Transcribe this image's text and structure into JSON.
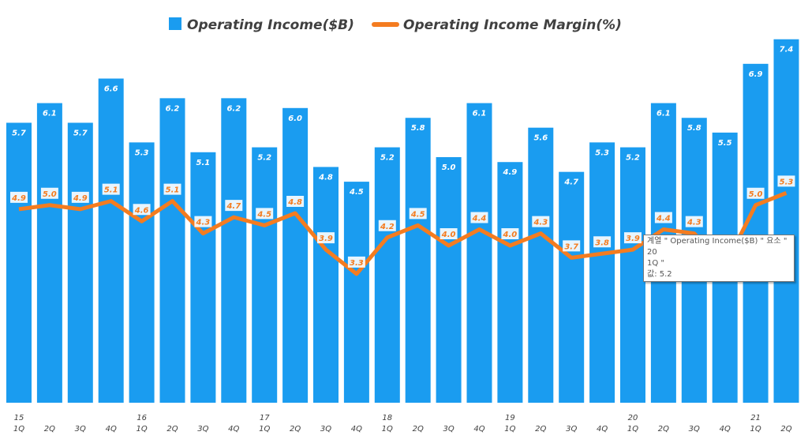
{
  "chart_data": {
    "type": "bar+line",
    "title": "",
    "legend": [
      "Operating Income($B)",
      "Operating Income Margin(%)"
    ],
    "legend_position": "top",
    "categories": [
      "1Q",
      "2Q",
      "3Q",
      "4Q",
      "1Q",
      "2Q",
      "3Q",
      "4Q",
      "1Q",
      "2Q",
      "3Q",
      "4Q",
      "1Q",
      "2Q",
      "3Q",
      "4Q",
      "1Q",
      "2Q",
      "3Q",
      "4Q",
      "1Q",
      "2Q",
      "3Q",
      "4Q",
      "1Q",
      "2Q"
    ],
    "years": [
      "15",
      "",
      "",
      "",
      "16",
      "",
      "",
      "",
      "17",
      "",
      "",
      "",
      "18",
      "",
      "",
      "",
      "19",
      "",
      "",
      "",
      "20",
      "",
      "",
      "",
      "21",
      ""
    ],
    "series": [
      {
        "name": "Operating Income($B)",
        "type": "bar",
        "color": "#1a9cf0",
        "values": [
          5.7,
          6.1,
          5.7,
          6.6,
          5.3,
          6.2,
          5.1,
          6.2,
          5.2,
          6.0,
          4.8,
          4.5,
          5.2,
          5.8,
          5.0,
          6.1,
          4.9,
          5.6,
          4.7,
          5.3,
          5.2,
          6.1,
          5.8,
          5.5,
          6.9,
          7.4
        ]
      },
      {
        "name": "Operating Income Margin(%)",
        "type": "line",
        "color": "#f47c20",
        "values": [
          4.9,
          5.0,
          4.9,
          5.1,
          4.6,
          5.1,
          4.3,
          4.7,
          4.5,
          4.8,
          3.9,
          3.3,
          4.2,
          4.5,
          4.0,
          4.4,
          4.0,
          4.3,
          3.7,
          3.8,
          3.9,
          4.4,
          4.3,
          3.5,
          5.0,
          5.3
        ]
      }
    ],
    "grid": false
  },
  "tooltip": {
    "line1": "계열 \" Operating Income($B) \" 요소 \" 20",
    "line2": "1Q \"",
    "line3": "값: 5.2"
  }
}
